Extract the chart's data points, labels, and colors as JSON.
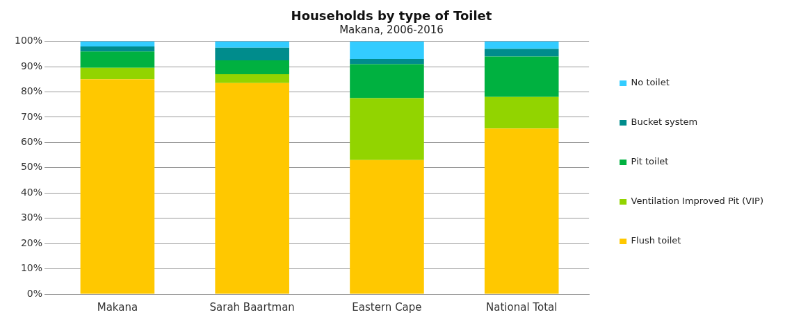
{
  "chart_data": {
    "type": "bar",
    "title": "Households by type of Toilet",
    "subtitle": "Makana, 2006-2016",
    "categories": [
      "Makana",
      "Sarah Baartman",
      "Eastern Cape",
      "National Total"
    ],
    "stacked": true,
    "series": [
      {
        "name": "Flush toilet",
        "color": "#ffc800",
        "values": [
          85,
          83.5,
          53,
          65.5
        ]
      },
      {
        "name": "Ventilation Improved Pit (VIP)",
        "color": "#92d400",
        "values": [
          4.5,
          3.5,
          24.5,
          12.5
        ]
      },
      {
        "name": "Pit toilet",
        "color": "#00b140",
        "values": [
          6.5,
          5.5,
          13.5,
          16
        ]
      },
      {
        "name": "Bucket system",
        "color": "#008c8c",
        "values": [
          2,
          5,
          2,
          3
        ]
      },
      {
        "name": "No toilet",
        "color": "#33ccff",
        "values": [
          2,
          2.5,
          7,
          3
        ]
      }
    ],
    "ylim": [
      0,
      100
    ],
    "yticks": [
      {
        "value": 0,
        "label": "0%"
      },
      {
        "value": 10,
        "label": "10%"
      },
      {
        "value": 20,
        "label": "20%"
      },
      {
        "value": 30,
        "label": "30%"
      },
      {
        "value": 40,
        "label": "40%"
      },
      {
        "value": 50,
        "label": "50%"
      },
      {
        "value": 60,
        "label": "60%"
      },
      {
        "value": 70,
        "label": "70%"
      },
      {
        "value": 80,
        "label": "80%"
      },
      {
        "value": 90,
        "label": "90%"
      },
      {
        "value": 100,
        "label": "100%"
      }
    ],
    "grid": "y",
    "legend": "right"
  }
}
